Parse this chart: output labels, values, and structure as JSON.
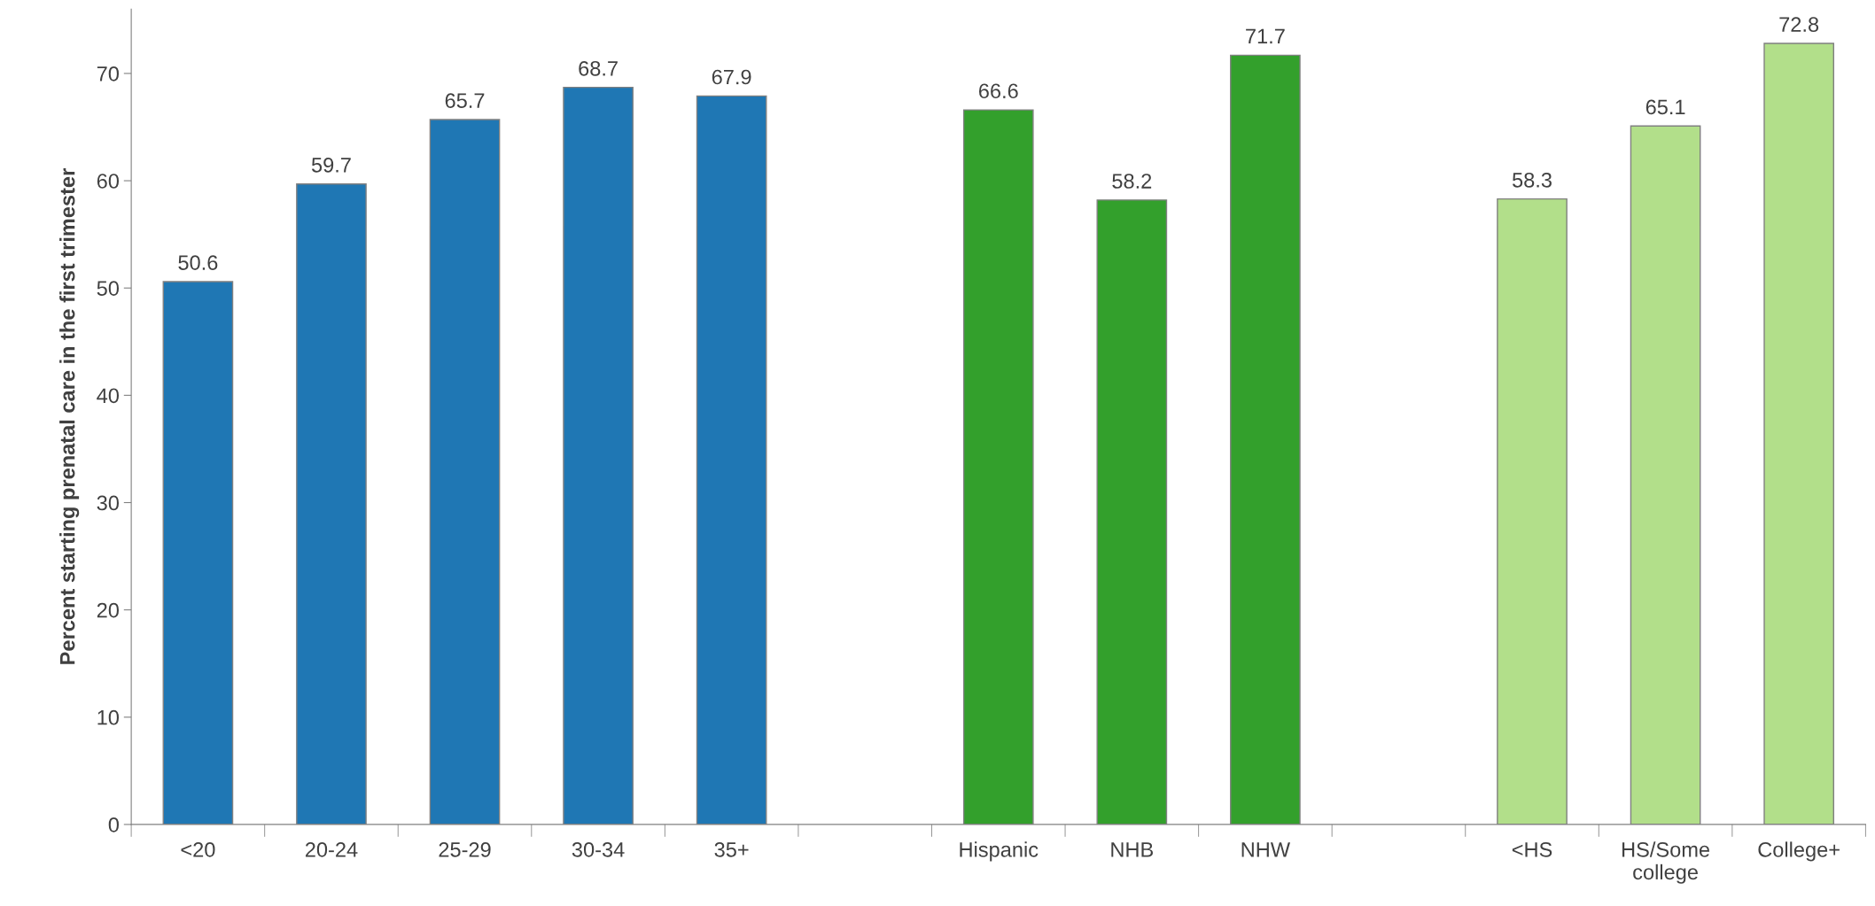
{
  "chart_data": {
    "type": "bar",
    "ylabel": "Percent starting prenatal care in the first trimester",
    "categories": [
      "<20",
      "20-24",
      "25-29",
      "30-34",
      "35+",
      null,
      "Hispanic",
      "NHB",
      "NHW",
      null,
      "<HS",
      "HS/Some\ncollege",
      "College+"
    ],
    "values": [
      50.6,
      59.7,
      65.7,
      68.7,
      67.9,
      null,
      66.6,
      58.2,
      71.7,
      null,
      58.3,
      65.1,
      72.8
    ],
    "colors": [
      "#1f77b4",
      "#1f77b4",
      "#1f77b4",
      "#1f77b4",
      "#1f77b4",
      null,
      "#33a02c",
      "#33a02c",
      "#33a02c",
      null,
      "#b2df8a",
      "#b2df8a",
      "#b2df8a"
    ],
    "ylim": [
      0,
      76
    ],
    "yticks": [
      0,
      10,
      20,
      30,
      40,
      50,
      60,
      70
    ],
    "data_labels": true,
    "grid": false,
    "legend": false
  }
}
